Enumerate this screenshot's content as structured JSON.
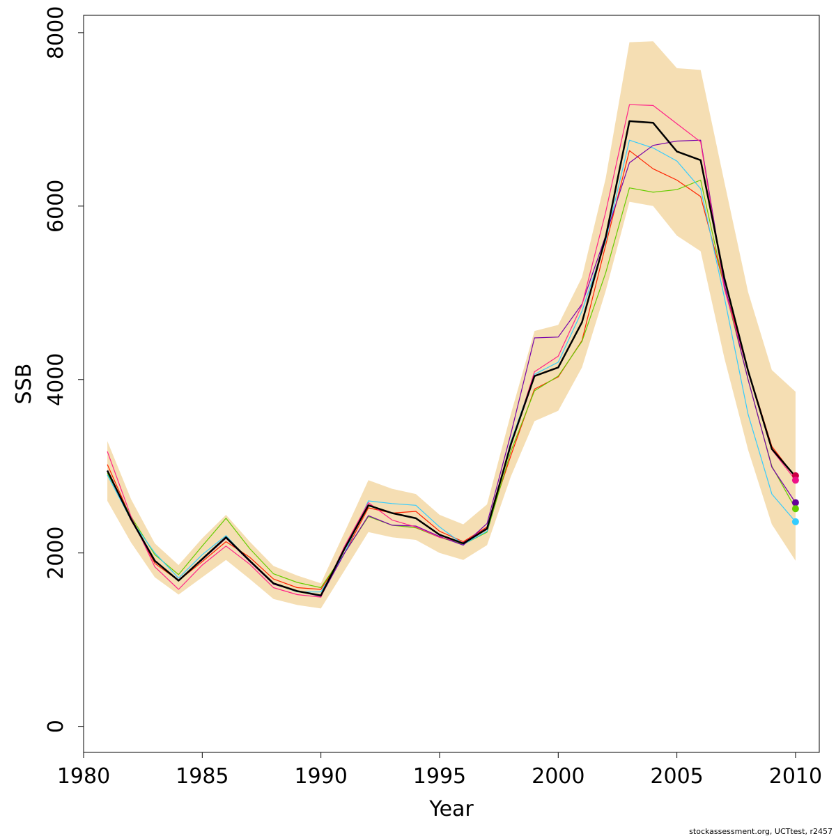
{
  "chart_data": {
    "type": "line",
    "xlabel": "Year",
    "ylabel": "SSB",
    "xlim": [
      1980,
      2011
    ],
    "ylim": [
      -300,
      8200
    ],
    "x_ticks": [
      1980,
      1985,
      1990,
      1995,
      2000,
      2005,
      2010
    ],
    "y_ticks": [
      0,
      2000,
      4000,
      6000,
      8000
    ],
    "x": [
      1981,
      1982,
      1983,
      1984,
      1985,
      1986,
      1987,
      1988,
      1989,
      1990,
      1991,
      1992,
      1993,
      1994,
      1995,
      1996,
      1997,
      1998,
      1999,
      2000,
      2001,
      2002,
      2003,
      2004,
      2005,
      2006,
      2007,
      2008,
      2009,
      2010
    ],
    "confidence_band": {
      "color": "#f5deb3",
      "lower": [
        2600,
        2120,
        1720,
        1520,
        1720,
        1920,
        1700,
        1470,
        1400,
        1360,
        1800,
        2240,
        2180,
        2150,
        2000,
        1920,
        2090,
        2880,
        3520,
        3640,
        4140,
        5020,
        6050,
        6000,
        5660,
        5480,
        4250,
        3190,
        2330,
        1910
      ],
      "upper": [
        3290,
        2620,
        2110,
        1860,
        2170,
        2440,
        2130,
        1850,
        1740,
        1650,
        2240,
        2840,
        2740,
        2680,
        2440,
        2330,
        2560,
        3600,
        4560,
        4630,
        5180,
        6320,
        7890,
        7900,
        7590,
        7570,
        6280,
        5010,
        4110,
        3860
      ]
    },
    "series": [
      {
        "color": "#000000",
        "width": 2.5,
        "values": [
          2950,
          2390,
          1910,
          1680,
          1930,
          2180,
          1910,
          1650,
          1560,
          1510,
          2050,
          2550,
          2460,
          2400,
          2210,
          2110,
          2280,
          3250,
          4040,
          4140,
          4660,
          5640,
          6980,
          6960,
          6630,
          6530,
          5170,
          4100,
          3200,
          2880
        ]
      },
      {
        "color": "#ff2200",
        "width": 1.2,
        "values": [
          3020,
          2400,
          1880,
          1680,
          1900,
          2130,
          1950,
          1700,
          1600,
          1580,
          2000,
          2520,
          2460,
          2480,
          2250,
          2130,
          2300,
          3120,
          3890,
          4030,
          4450,
          5550,
          6640,
          6430,
          6300,
          6110,
          5080,
          4110,
          3230,
          2870
        ]
      },
      {
        "color": "#66cc00",
        "width": 1.2,
        "values": [
          2920,
          2420,
          1980,
          1750,
          2080,
          2400,
          2050,
          1760,
          1660,
          1600,
          2000,
          2420,
          2320,
          2290,
          2180,
          2100,
          2240,
          3170,
          3870,
          4040,
          4440,
          5230,
          6210,
          6160,
          6190,
          6300,
          5070,
          4000,
          3000,
          2510
        ]
      },
      {
        "color": "#33ccff",
        "width": 1.2,
        "values": [
          2900,
          2380,
          2000,
          1710,
          1980,
          2200,
          1900,
          1650,
          1550,
          1550,
          2000,
          2600,
          2570,
          2550,
          2300,
          2100,
          2250,
          3280,
          4060,
          4200,
          4790,
          5600,
          6760,
          6670,
          6520,
          6200,
          4950,
          3600,
          2680,
          2360
        ]
      },
      {
        "color": "#7700aa",
        "width": 1.2,
        "values": [
          2950,
          2380,
          1900,
          1690,
          1920,
          2170,
          1900,
          1640,
          1560,
          1500,
          2000,
          2430,
          2320,
          2310,
          2190,
          2090,
          2340,
          3370,
          4480,
          4490,
          4870,
          5660,
          6500,
          6700,
          6750,
          6760,
          5100,
          4000,
          2990,
          2580
        ]
      },
      {
        "color": "#ff2288",
        "width": 1.2,
        "values": [
          3170,
          2420,
          1840,
          1580,
          1860,
          2080,
          1870,
          1600,
          1520,
          1490,
          2080,
          2580,
          2380,
          2300,
          2180,
          2120,
          2290,
          3230,
          4090,
          4270,
          4860,
          5930,
          7170,
          7160,
          6950,
          6740,
          5050,
          4090,
          3190,
          2840
        ]
      }
    ],
    "end_points": [
      {
        "color": "#cc0044",
        "year": 2010,
        "value": 2890
      },
      {
        "color": "#ee1188",
        "year": 2010,
        "value": 2840
      },
      {
        "color": "#660099",
        "year": 2010,
        "value": 2580
      },
      {
        "color": "#66cc00",
        "year": 2010,
        "value": 2510
      },
      {
        "color": "#33ccff",
        "year": 2010,
        "value": 2360
      }
    ]
  },
  "footer": {
    "note": "stockassessment.org, UCTtest, r2457"
  }
}
